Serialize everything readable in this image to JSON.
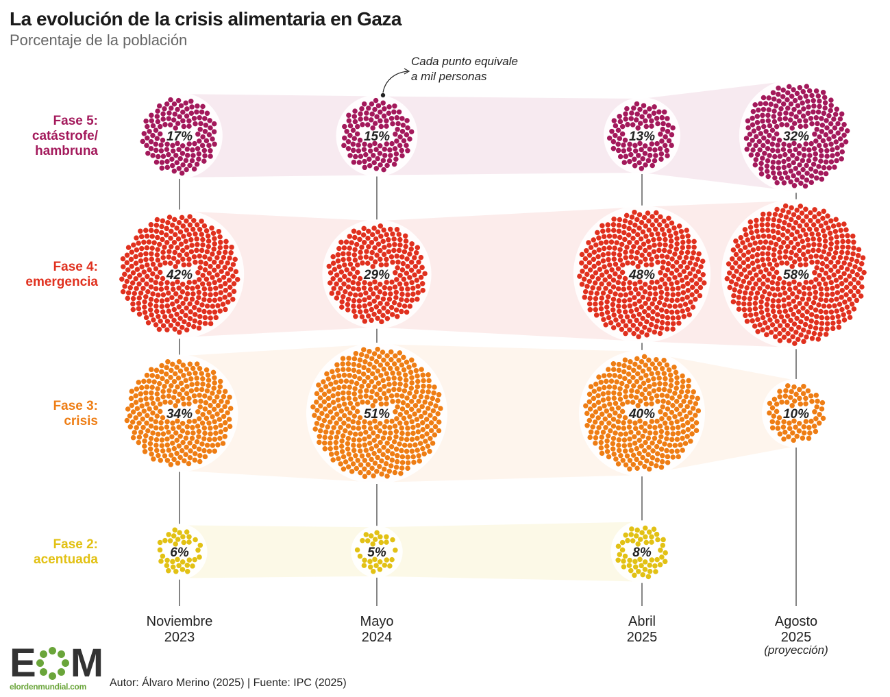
{
  "title": "La evolución de la crisis alimentaria en Gaza",
  "subtitle": "Porcentaje de la población",
  "annotation": [
    "Cada punto equivale",
    "a mil personas"
  ],
  "credits": "Autor: Álvaro Merino (2025) | Fuente: IPC (2025)",
  "logo": {
    "letters_left": "E",
    "letters_right": "M",
    "site": "elordenmundial.com"
  },
  "colors": {
    "fase5": "#a3195b",
    "fase4": "#e0301e",
    "fase3": "#ee7d14",
    "fase2": "#e2c114",
    "logo_green": "#6aa53a"
  },
  "chart_data": {
    "type": "dot-bubble",
    "categories": [
      {
        "lines": [
          "Noviembre",
          "2023"
        ]
      },
      {
        "lines": [
          "Mayo",
          "2024"
        ]
      },
      {
        "lines": [
          "Abril",
          "2025"
        ]
      },
      {
        "lines": [
          "Agosto",
          "2025"
        ],
        "note": "(proyección)"
      }
    ],
    "series": [
      {
        "name": "Fase 5: catástrofe/ hambruna",
        "label_lines": [
          "Fase 5:",
          "catástrofe/",
          "hambruna"
        ],
        "color": "#a3195b",
        "values": [
          17,
          15,
          13,
          32
        ]
      },
      {
        "name": "Fase 4: emergencia",
        "label_lines": [
          "Fase 4:",
          "emergencia"
        ],
        "color": "#e0301e",
        "values": [
          42,
          29,
          48,
          58
        ]
      },
      {
        "name": "Fase 3: crisis",
        "label_lines": [
          "Fase 3:",
          "crisis"
        ],
        "color": "#ee7d14",
        "values": [
          34,
          51,
          40,
          10
        ]
      },
      {
        "name": "Fase 2: acentuada",
        "label_lines": [
          "Fase 2:",
          "acentuada"
        ],
        "color": "#e2c114",
        "values": [
          6,
          5,
          8,
          null
        ]
      }
    ]
  }
}
